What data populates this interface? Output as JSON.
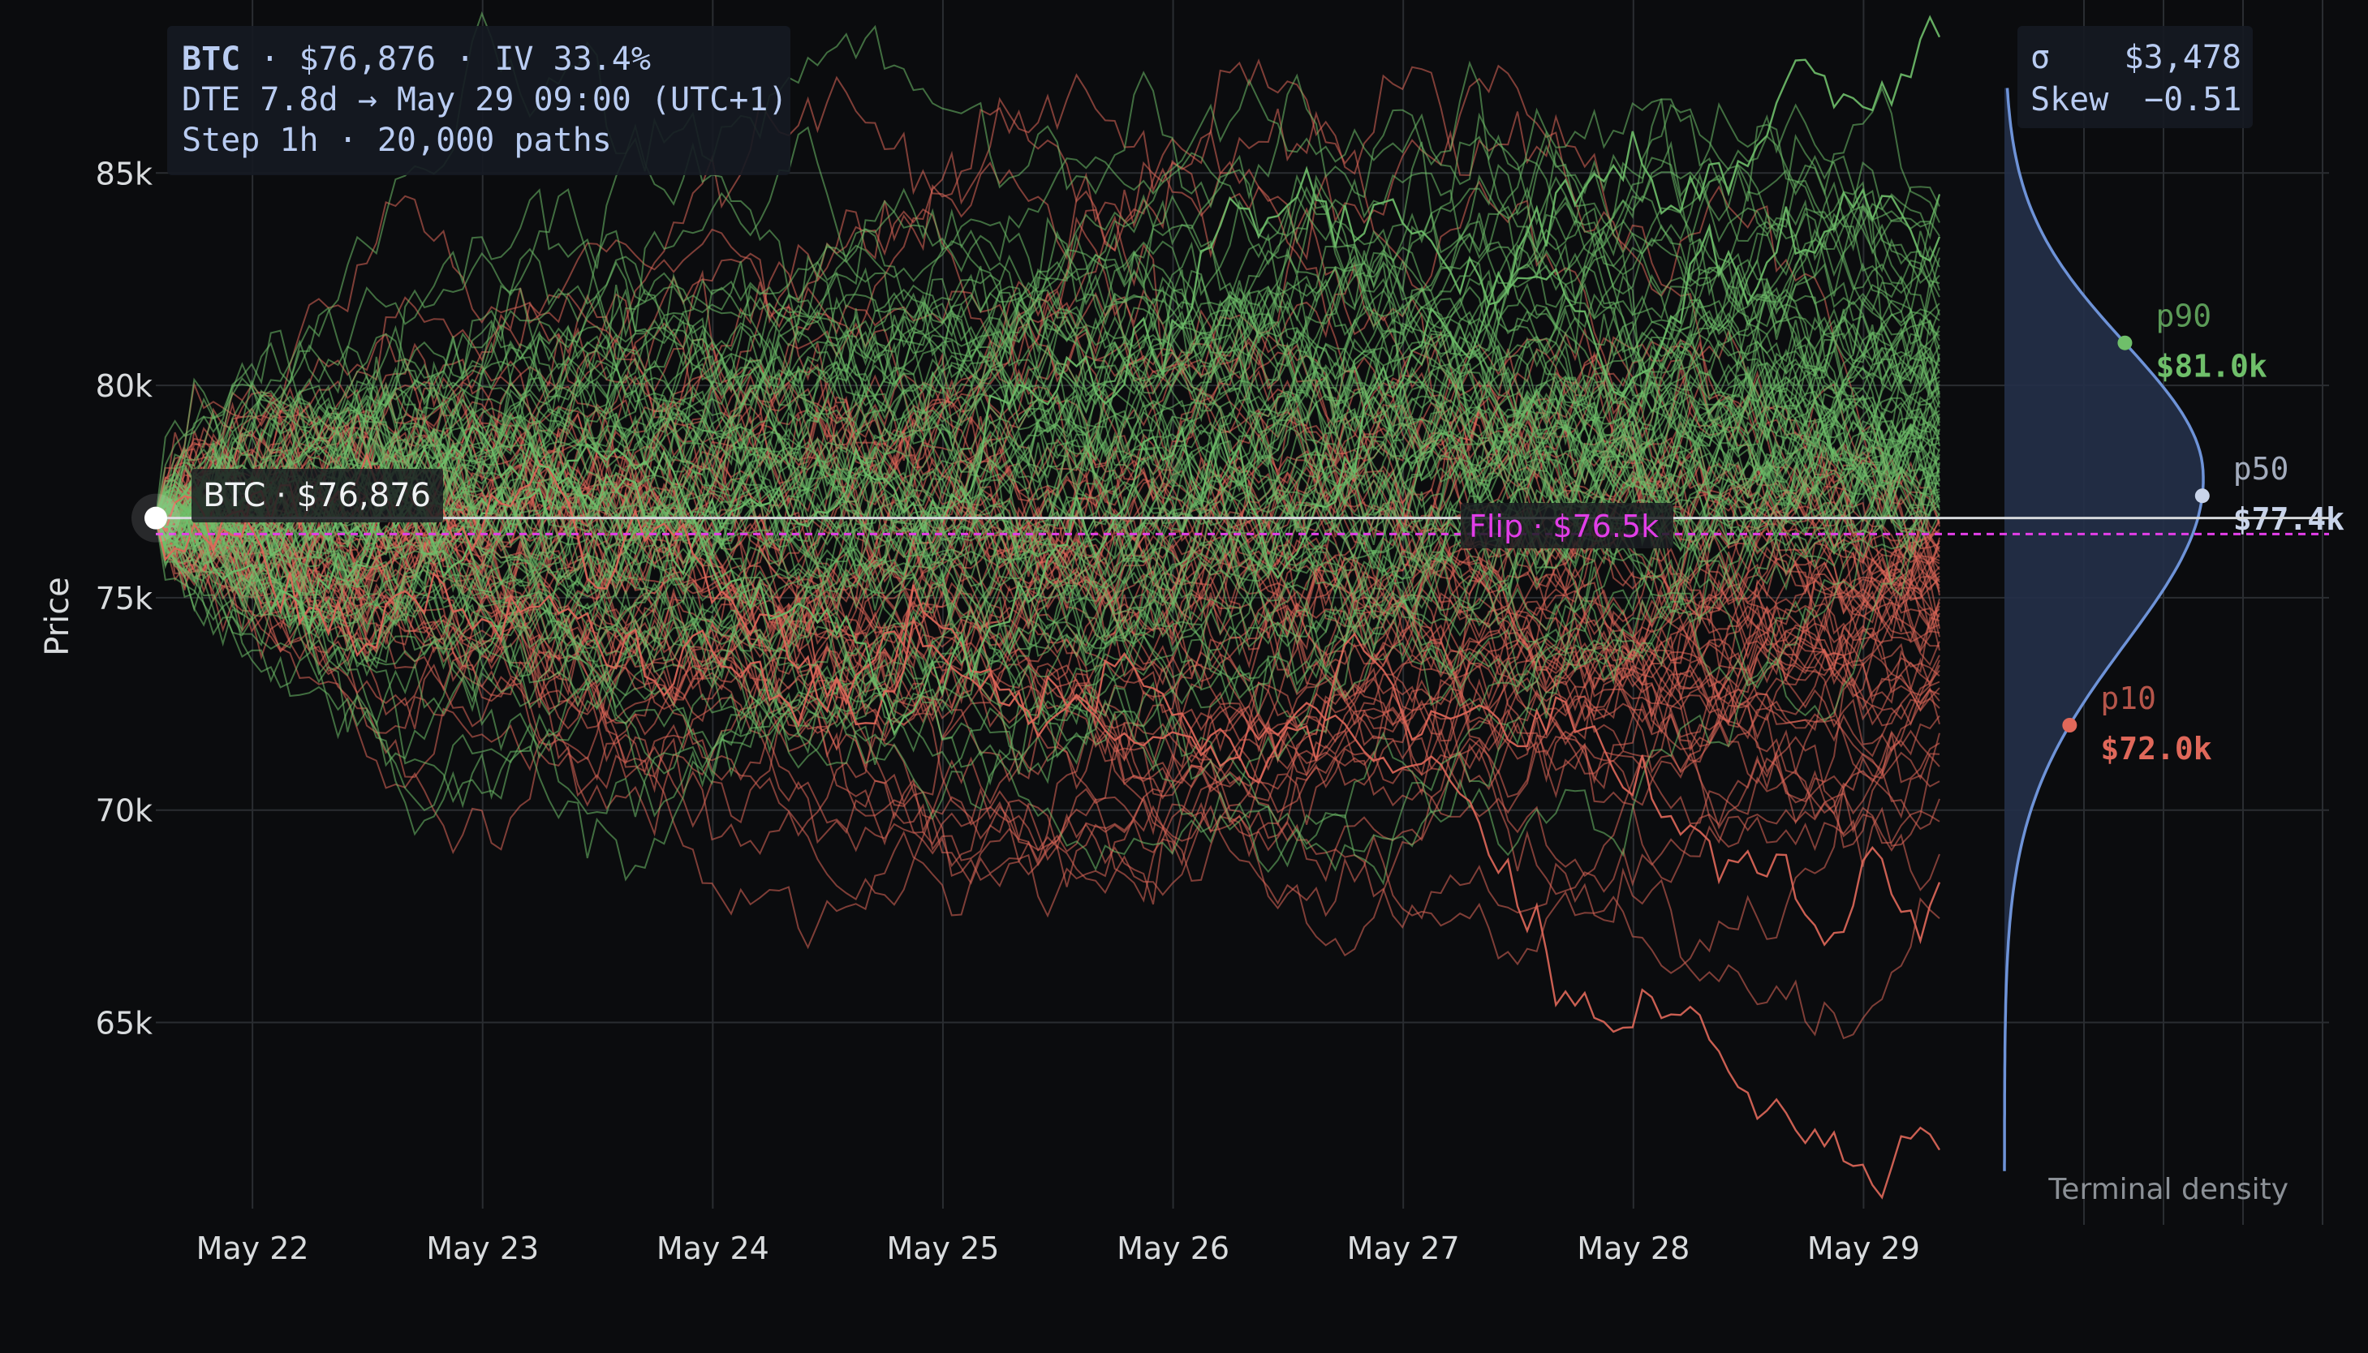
{
  "colors": {
    "background": "#0b0c0e",
    "grid": "#2a2d31",
    "axis_text": "#d9dcde",
    "up_path": "#6fbf6a",
    "down_path": "#e0685a",
    "spot_line": "#d6d9dc",
    "flip_line": "#e23ee8",
    "density_line": "#6e93d8",
    "density_fill": "#243049",
    "info_text": "#b9ccf2",
    "info_box": "#151a22",
    "p90": "#6fbf6a",
    "p50": "#c9d4ea",
    "p10": "#e0685a",
    "muted": "#8b9096"
  },
  "info_box": {
    "line1_symbol": "BTC",
    "line1_rest": " · $76,876 · IV 33.4%",
    "line2": "DTE 7.8d → May 29 09:00 (UTC+1)",
    "line3": "Step 1h · 20,000 paths"
  },
  "stats_box": {
    "sigma_label": "σ",
    "sigma_value": "$3,478",
    "skew_label": "Skew",
    "skew_value": "−0.51"
  },
  "spot_label": "BTC · $76,876",
  "flip_label": "Flip · $76.5k",
  "density_caption": "Terminal density",
  "chart_data": {
    "type": "line",
    "title": "",
    "xlabel": "",
    "ylabel": "Price",
    "x_ticks": [
      "May 22",
      "May 23",
      "May 24",
      "May 25",
      "May 26",
      "May 27",
      "May 28",
      "May 29"
    ],
    "x_range_days": [
      21.58,
      29.33
    ],
    "ylim": [
      61000,
      88500
    ],
    "y_ticks": [
      65000,
      70000,
      75000,
      80000,
      85000
    ],
    "y_tick_labels": [
      "65k",
      "70k",
      "75k",
      "80k",
      "85k"
    ],
    "grid": true,
    "start": {
      "x_day": 21.58,
      "price": 76876
    },
    "end": {
      "x_day": 29.33
    },
    "spot_price": 76876,
    "flip_price": 76500,
    "series_count_drawn": 140,
    "highlight_paths": [
      {
        "terminal": 88200,
        "peak": 88500
      },
      {
        "terminal": 62000,
        "trough": 62000
      },
      {
        "terminal": 68300
      },
      {
        "terminal": 83500
      }
    ],
    "terminal_density": {
      "type": "area",
      "peak_price": 78000,
      "percentiles": [
        {
          "name": "p90",
          "price": 81000,
          "label": "$81.0k"
        },
        {
          "name": "p50",
          "price": 77400,
          "label": "$77.4k"
        },
        {
          "name": "p10",
          "price": 72000,
          "label": "$72.0k"
        }
      ],
      "sigma": 3478,
      "skew": -0.51
    }
  }
}
